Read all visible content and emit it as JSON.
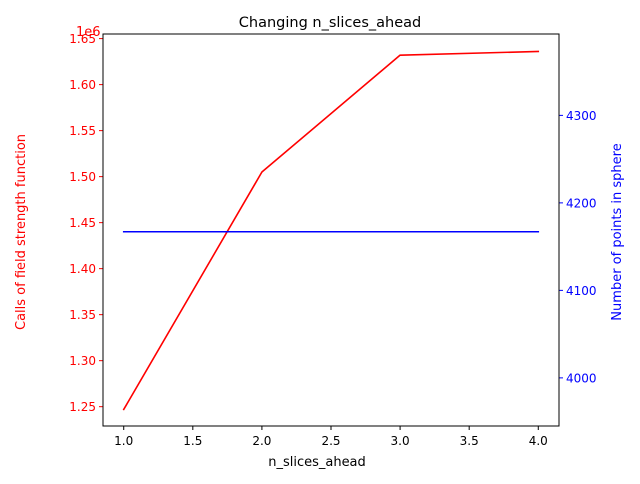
{
  "chart_data": {
    "type": "line",
    "title": "Changing n_slices_ahead",
    "xlabel": "n_slices_ahead",
    "x_ticks": [
      1.0,
      1.5,
      2.0,
      2.5,
      3.0,
      3.5,
      4.0
    ],
    "x_tick_labels": [
      "1.0",
      "1.5",
      "2.0",
      "2.5",
      "3.0",
      "3.5",
      "4.0"
    ],
    "xlim": [
      0.85,
      4.15
    ],
    "left_axis": {
      "label": "Calls of field strength function",
      "color": "#ff0000",
      "offset_label": "1e6",
      "ylim": [
        1.229,
        1.655
      ],
      "ticks": [
        1.25,
        1.3,
        1.35,
        1.4,
        1.45,
        1.5,
        1.55,
        1.6,
        1.65
      ],
      "tick_labels": [
        "1.25",
        "1.30",
        "1.35",
        "1.40",
        "1.45",
        "1.50",
        "1.55",
        "1.60",
        "1.65"
      ]
    },
    "right_axis": {
      "label": "Number of points in sphere",
      "color": "#0000ff",
      "ylim": [
        3945,
        4393
      ],
      "ticks": [
        4000,
        4100,
        4200,
        4300
      ],
      "tick_labels": [
        "4000",
        "4100",
        "4200",
        "4300"
      ]
    },
    "series": [
      {
        "name": "calls",
        "axis": "left",
        "color": "#ff0000",
        "x": [
          1,
          2,
          3,
          4
        ],
        "values": [
          1.247,
          1.505,
          1.632,
          1.636
        ]
      },
      {
        "name": "points",
        "axis": "right",
        "color": "#0000ff",
        "x": [
          1,
          2,
          3,
          4
        ],
        "values": [
          4167,
          4167,
          4167,
          4167
        ]
      }
    ]
  }
}
